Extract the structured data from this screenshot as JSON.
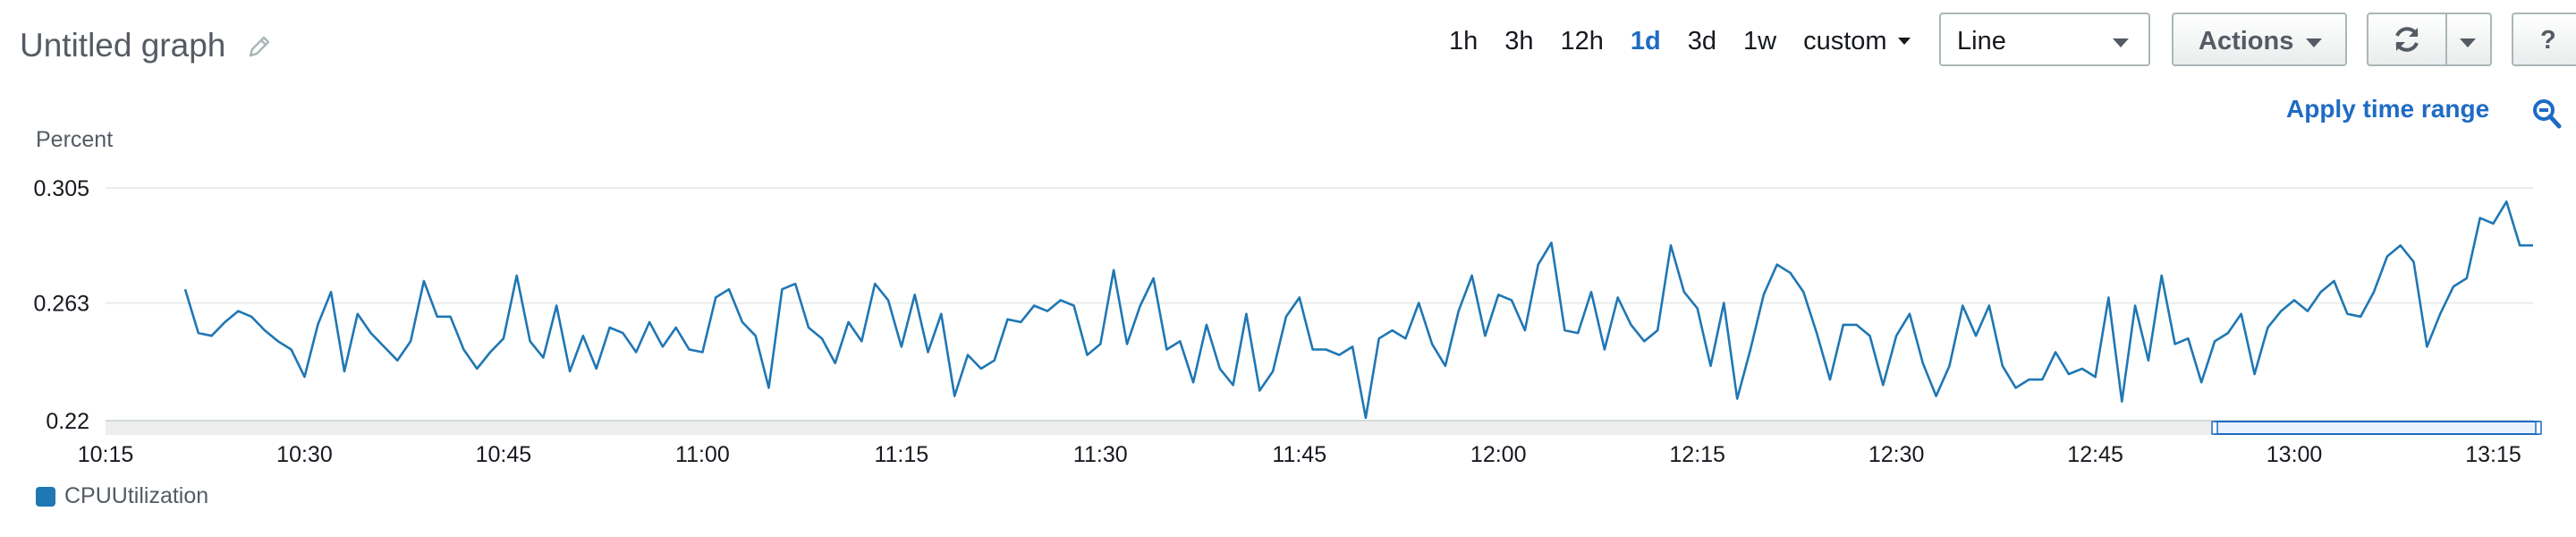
{
  "graph": {
    "title": "Untitled graph"
  },
  "toolbar": {
    "ranges": [
      "1h",
      "3h",
      "12h",
      "1d",
      "3d",
      "1w"
    ],
    "active_range": "1d",
    "custom_label": "custom",
    "view_select": "Line",
    "actions_label": "Actions",
    "help_label": "?"
  },
  "apply_label": "Apply time range",
  "colors": {
    "accent": "#1e6bc4",
    "series": "#1f77b4"
  },
  "icons": [
    "pencil-icon",
    "refresh-icon",
    "chevron-down-icon",
    "zoom-out-icon"
  ],
  "chart_data": {
    "type": "line",
    "ylabel": "Percent",
    "yticks": [
      "0.305",
      "0.263",
      "0.22"
    ],
    "ylim": [
      0.22,
      0.305
    ],
    "xticks": [
      "10:15",
      "10:30",
      "10:45",
      "11:00",
      "11:15",
      "11:30",
      "11:45",
      "12:00",
      "12:15",
      "12:30",
      "12:45",
      "13:00",
      "13:15"
    ],
    "grid": true,
    "legend": "bottom-left",
    "series": [
      {
        "name": "CPUUtilization",
        "x_start": "10:21",
        "x_step_minutes": 1,
        "values": [
          0.268,
          0.252,
          0.251,
          0.256,
          0.26,
          0.258,
          0.253,
          0.249,
          0.246,
          0.236,
          0.255,
          0.267,
          0.238,
          0.259,
          0.252,
          0.247,
          0.242,
          0.249,
          0.271,
          0.258,
          0.258,
          0.246,
          0.239,
          0.245,
          0.25,
          0.273,
          0.249,
          0.243,
          0.262,
          0.238,
          0.251,
          0.239,
          0.254,
          0.252,
          0.245,
          0.256,
          0.247,
          0.254,
          0.246,
          0.245,
          0.265,
          0.268,
          0.256,
          0.251,
          0.232,
          0.268,
          0.27,
          0.254,
          0.25,
          0.241,
          0.256,
          0.249,
          0.27,
          0.264,
          0.247,
          0.266,
          0.245,
          0.259,
          0.229,
          0.244,
          0.239,
          0.242,
          0.257,
          0.256,
          0.262,
          0.26,
          0.264,
          0.262,
          0.244,
          0.248,
          0.275,
          0.248,
          0.262,
          0.272,
          0.246,
          0.249,
          0.234,
          0.255,
          0.239,
          0.233,
          0.259,
          0.231,
          0.238,
          0.258,
          0.265,
          0.246,
          0.246,
          0.244,
          0.247,
          0.221,
          0.25,
          0.253,
          0.25,
          0.263,
          0.248,
          0.24,
          0.26,
          0.273,
          0.251,
          0.266,
          0.264,
          0.253,
          0.277,
          0.285,
          0.253,
          0.252,
          0.267,
          0.246,
          0.265,
          0.255,
          0.249,
          0.253,
          0.284,
          0.267,
          0.261,
          0.24,
          0.263,
          0.228,
          0.246,
          0.266,
          0.277,
          0.274,
          0.267,
          0.252,
          0.235,
          0.255,
          0.255,
          0.251,
          0.233,
          0.251,
          0.259,
          0.241,
          0.229,
          0.24,
          0.262,
          0.251,
          0.262,
          0.24,
          0.232,
          0.235,
          0.235,
          0.245,
          0.237,
          0.239,
          0.236,
          0.265,
          0.227,
          0.262,
          0.242,
          0.273,
          0.248,
          0.25,
          0.234,
          0.249,
          0.252,
          0.259,
          0.237,
          0.254,
          0.26,
          0.264,
          0.26,
          0.267,
          0.271,
          0.259,
          0.258,
          0.267,
          0.28,
          0.284,
          0.278,
          0.247,
          0.259,
          0.269,
          0.272,
          0.294,
          0.292,
          0.3,
          0.284,
          0.284
        ]
      }
    ]
  }
}
